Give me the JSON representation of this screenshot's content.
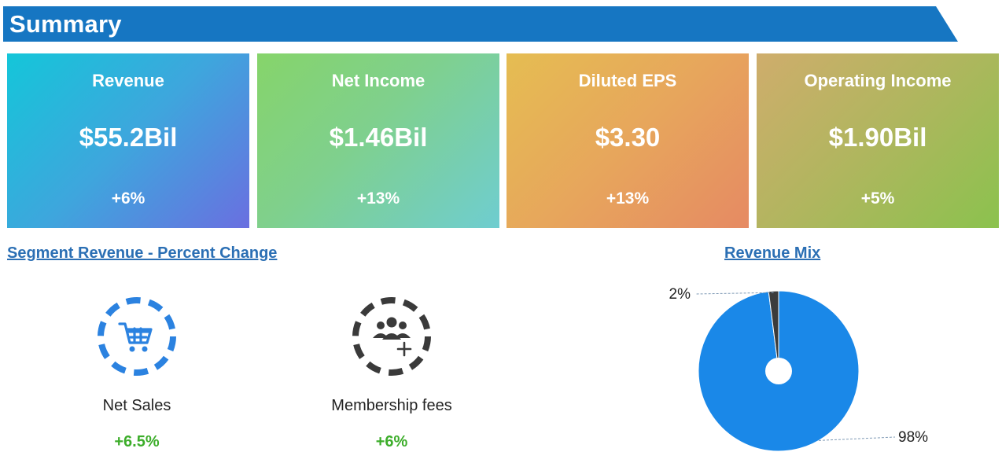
{
  "summary": {
    "title": "Summary"
  },
  "cards": [
    {
      "label": "Revenue",
      "value": "$55.2Bil",
      "change": "+6%"
    },
    {
      "label": "Net Income",
      "value": "$1.46Bil",
      "change": "+13%"
    },
    {
      "label": "Diluted EPS",
      "value": "$3.30",
      "change": "+13%"
    },
    {
      "label": "Operating Income",
      "value": "$1.90Bil",
      "change": "+5%"
    }
  ],
  "segments": {
    "title": "Segment Revenue - Percent Change",
    "items": [
      {
        "label": "Net Sales",
        "change": "+6.5%",
        "icon": "shopping-cart-icon",
        "color": "#2b82e0"
      },
      {
        "label": "Membership fees",
        "change": "+6%",
        "icon": "members-add-icon",
        "color": "#3a3a3a"
      }
    ]
  },
  "chart_data": {
    "type": "pie",
    "title": "Revenue Mix",
    "slices": [
      {
        "value": 98,
        "label": "98%",
        "color": "#1a88e8"
      },
      {
        "value": 2,
        "label": "2%",
        "color": "#3b3b3b"
      }
    ]
  }
}
